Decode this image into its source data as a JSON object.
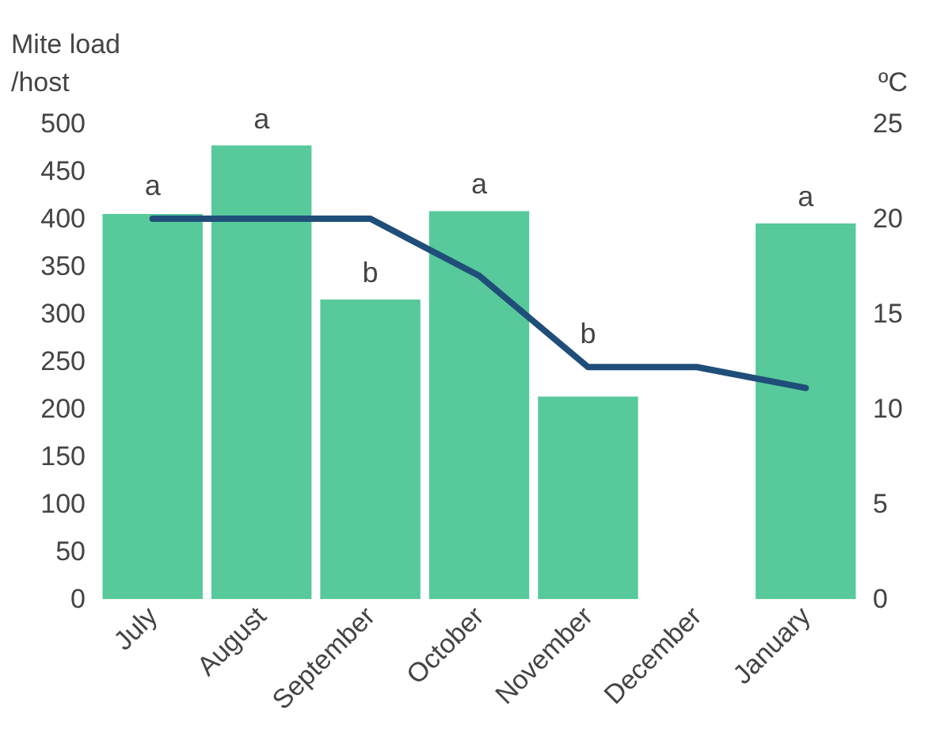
{
  "chart_data": {
    "type": "bar",
    "ylabel": "Mite load\n/host",
    "y2label": "ºC",
    "categories": [
      "July",
      "August",
      "September",
      "October",
      "November",
      "December",
      "January"
    ],
    "series": [
      {
        "color": "#57c99a",
        "values": [
          405,
          477,
          315,
          408,
          213,
          null,
          395
        ]
      },
      {
        "type": "line",
        "axis": "y2",
        "color": "#1f4e79",
        "marker": "none",
        "values": [
          20,
          20,
          20,
          17,
          12.2,
          12.2,
          11.1
        ]
      }
    ],
    "ylim": [
      0,
      500
    ],
    "yticks": [
      0,
      50,
      100,
      150,
      200,
      250,
      300,
      350,
      400,
      450,
      500
    ],
    "y2lim": [
      0,
      25
    ],
    "y2ticks": [
      0,
      5,
      10,
      15,
      20,
      25
    ],
    "annotations": [
      {
        "text": "a",
        "x": "July",
        "y": 405
      },
      {
        "text": "a",
        "x": "August",
        "y": 477
      },
      {
        "text": "b",
        "x": "September",
        "y": 315
      },
      {
        "text": "a",
        "x": "October",
        "y": 408
      },
      {
        "text": "b",
        "x": "November",
        "y": 213
      },
      {
        "text": "a",
        "x": "January",
        "y": 395
      }
    ],
    "grid": false
  }
}
